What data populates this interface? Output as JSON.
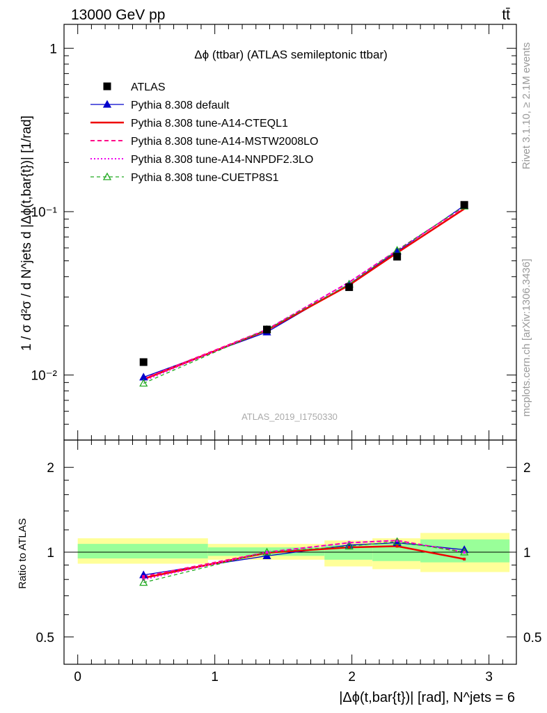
{
  "header": {
    "energy_label": "13000 GeV pp",
    "process_label": "tt̄"
  },
  "side_labels": {
    "rivet": "Rivet 3.1.10, ≥ 2.1M events",
    "mcplots": "mcplots.cern.ch [arXiv:1306.3436]"
  },
  "chart_data": [
    {
      "type": "line",
      "panel": "main",
      "title": "Δϕ (ttbar) (ATLAS semileptonic ttbar)",
      "ylabel": "1 / σ d²σ / d N^jets d |Δϕ(t,bar{t})| [1/rad]",
      "watermark": "ATLAS_2019_I1750330",
      "yscale": "log",
      "ylim": [
        0.004,
        1.4
      ],
      "xlim": [
        -0.1,
        3.2
      ],
      "yticks": [
        {
          "value": 1,
          "label": "1"
        },
        {
          "value": 0.1,
          "label": "10⁻¹"
        },
        {
          "value": 0.01,
          "label": "10⁻²"
        }
      ],
      "legend_position": "top-left",
      "data_series": {
        "name": "ATLAS",
        "color": "#000000",
        "x": [
          0.48,
          1.38,
          1.98,
          2.33,
          2.82
        ],
        "y": [
          0.012,
          0.019,
          0.0345,
          0.053,
          0.11
        ]
      },
      "series": [
        {
          "name": "Pythia 8.308 default",
          "color": "#0000cc",
          "style": "solid-triangle",
          "x": [
            0.48,
            1.38,
            1.98,
            2.33,
            2.82
          ],
          "y": [
            0.0097,
            0.0183,
            0.036,
            0.057,
            0.109
          ]
        },
        {
          "name": "Pythia 8.308 tune-A14-CTEQL1",
          "color": "#ee0000",
          "style": "solid-thick",
          "x": [
            0.48,
            1.38,
            1.98,
            2.33,
            2.82
          ],
          "y": [
            0.0094,
            0.0188,
            0.0355,
            0.056,
            0.104
          ]
        },
        {
          "name": "Pythia 8.308 tune-A14-MSTW2008LO",
          "color": "#ff0088",
          "style": "dashed",
          "x": [
            0.48,
            1.38,
            1.98,
            2.33,
            2.82
          ],
          "y": [
            0.0095,
            0.019,
            0.037,
            0.058,
            0.107
          ]
        },
        {
          "name": "Pythia 8.308 tune-A14-NNPDF2.3LO",
          "color": "#ee00ee",
          "style": "dotted",
          "x": [
            0.48,
            1.38,
            1.98,
            2.33,
            2.82
          ],
          "y": [
            0.0092,
            0.019,
            0.037,
            0.058,
            0.107
          ]
        },
        {
          "name": "Pythia 8.308 tune-CUETP8S1",
          "color": "#22aa22",
          "style": "dashed-open-triangle",
          "x": [
            0.48,
            1.38,
            1.98,
            2.33,
            2.82
          ],
          "y": [
            0.0089,
            0.019,
            0.036,
            0.058,
            0.108
          ]
        }
      ]
    },
    {
      "type": "line",
      "panel": "ratio",
      "ylabel": "Ratio to ATLAS",
      "xlabel": "|Δϕ(t,bar{t})| [rad], N^jets = 6",
      "xlim": [
        -0.1,
        3.2
      ],
      "ylim": [
        0.4,
        2.5
      ],
      "yscale": "log",
      "xticks": [
        0,
        1,
        2,
        3
      ],
      "yticks": [
        {
          "value": 0.5,
          "label": "0.5"
        },
        {
          "value": 1,
          "label": "1"
        },
        {
          "value": 2,
          "label": "2"
        }
      ],
      "uncertainty_bands": [
        {
          "x0": 0.0,
          "x1": 0.95,
          "yellow": [
            0.91,
            1.12
          ],
          "green": [
            0.95,
            1.07
          ]
        },
        {
          "x0": 0.95,
          "x1": 1.8,
          "yellow": [
            0.94,
            1.07
          ],
          "green": [
            0.97,
            1.04
          ]
        },
        {
          "x0": 1.8,
          "x1": 2.15,
          "yellow": [
            0.89,
            1.1
          ],
          "green": [
            0.94,
            1.06
          ]
        },
        {
          "x0": 2.15,
          "x1": 2.5,
          "yellow": [
            0.87,
            1.12
          ],
          "green": [
            0.93,
            1.07
          ]
        },
        {
          "x0": 2.5,
          "x1": 3.15,
          "yellow": [
            0.85,
            1.17
          ],
          "green": [
            0.92,
            1.11
          ]
        }
      ],
      "series": [
        {
          "name": "Pythia 8.308 default",
          "color": "#0000cc",
          "y": [
            0.83,
            0.97,
            1.06,
            1.08,
            1.02
          ]
        },
        {
          "name": "Pythia 8.308 tune-A14-CTEQL1",
          "color": "#ee0000",
          "y": [
            0.81,
            0.995,
            1.04,
            1.05,
            0.945
          ]
        },
        {
          "name": "Pythia 8.308 tune-A14-MSTW2008LO",
          "color": "#ff0088",
          "y": [
            0.82,
            1.0,
            1.08,
            1.1,
            1.0
          ]
        },
        {
          "name": "Pythia 8.308 tune-A14-NNPDF2.3LO",
          "color": "#ee00ee",
          "y": [
            0.8,
            1.0,
            1.08,
            1.1,
            1.0
          ]
        },
        {
          "name": "Pythia 8.308 tune-CUETP8S1",
          "color": "#22aa22",
          "y": [
            0.78,
            1.0,
            1.05,
            1.09,
            1.0
          ]
        }
      ]
    }
  ]
}
